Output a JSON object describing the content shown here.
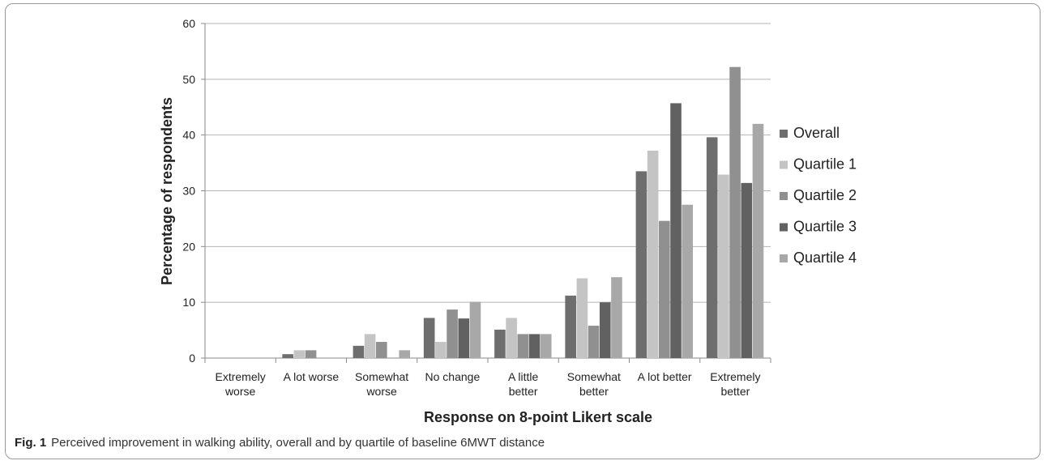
{
  "caption": {
    "label": "Fig. 1",
    "text": "Perceived improvement in walking ability, overall and by quartile of baseline 6MWT distance"
  },
  "chart_data": {
    "type": "bar",
    "title": "",
    "xlabel": "Response on 8-point Likert scale",
    "ylabel": "Percentage of respondents",
    "ylim": [
      0,
      60
    ],
    "yticks": [
      0,
      10,
      20,
      30,
      40,
      50,
      60
    ],
    "grid": true,
    "legend_position": "right",
    "categories": [
      [
        "Extremely",
        "worse"
      ],
      [
        "A lot worse"
      ],
      [
        "Somewhat",
        "worse"
      ],
      [
        "No change"
      ],
      [
        "A little",
        "better"
      ],
      [
        "Somewhat",
        "better"
      ],
      [
        "A lot better"
      ],
      [
        "Extremely",
        "better"
      ]
    ],
    "series": [
      {
        "name": "Overall",
        "color": "#6e6e6e",
        "values": [
          0,
          0.7,
          2.2,
          7.2,
          5.1,
          11.2,
          33.5,
          39.6
        ]
      },
      {
        "name": "Quartile 1",
        "color": "#c4c4c4",
        "values": [
          0,
          1.4,
          4.3,
          2.9,
          7.2,
          14.3,
          37.2,
          32.9
        ]
      },
      {
        "name": "Quartile 2",
        "color": "#909090",
        "values": [
          0,
          1.4,
          2.9,
          8.7,
          4.3,
          5.8,
          24.6,
          52.2
        ]
      },
      {
        "name": "Quartile 3",
        "color": "#616161",
        "values": [
          0,
          0,
          0,
          7.1,
          4.3,
          10.0,
          45.7,
          31.4
        ]
      },
      {
        "name": "Quartile 4",
        "color": "#a8a8a8",
        "values": [
          0,
          0,
          1.4,
          10.1,
          4.3,
          14.5,
          27.5,
          42.0
        ]
      }
    ]
  }
}
